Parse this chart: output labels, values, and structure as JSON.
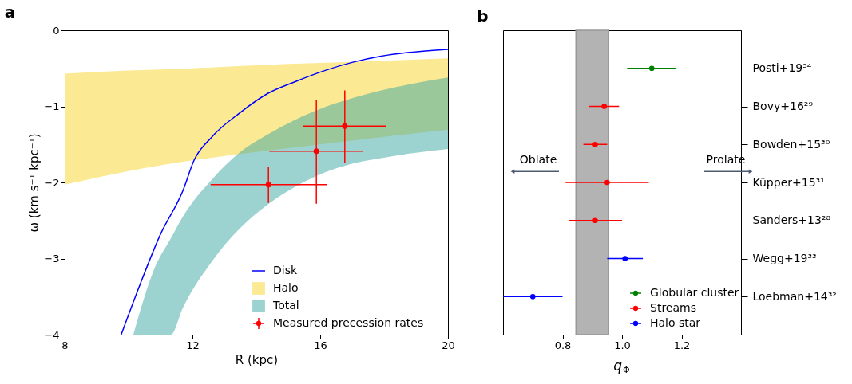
{
  "chart_data": [
    {
      "type": "line",
      "title": "a",
      "xlabel": "R (kpc)",
      "ylabel": "ω (km s⁻¹ kpc⁻¹)",
      "xlim": [
        8,
        20
      ],
      "ylim": [
        -4,
        0
      ],
      "xticks": [
        8,
        12,
        16,
        20
      ],
      "yticks": [
        -4,
        -3,
        -2,
        -1,
        0
      ],
      "legend": "bottom right",
      "series": [
        {
          "name": "Disk",
          "type": "line",
          "color": "#0000ff",
          "x": [
            9.77,
            10.37,
            10.99,
            11.7,
            12.05,
            12.59,
            13.47,
            14.36,
            15.25,
            16.14,
            17.02,
            17.91,
            18.8,
            20
          ],
          "values": [
            -4,
            -3.33,
            -2.69,
            -2.11,
            -1.71,
            -1.41,
            -1.09,
            -0.83,
            -0.67,
            -0.53,
            -0.42,
            -0.34,
            -0.29,
            -0.25
          ]
        },
        {
          "name": "Halo",
          "type": "area",
          "color": "#fce993",
          "x": [
            8,
            10,
            12,
            14,
            16,
            18,
            20
          ],
          "values": [
            null,
            null,
            null,
            null,
            null,
            null,
            null
          ],
          "lower": [
            -2.03,
            -1.85,
            -1.71,
            -1.6,
            -1.5,
            -1.4,
            -1.31
          ],
          "upper": [
            -0.57,
            -0.53,
            -0.5,
            -0.46,
            -0.43,
            -0.4,
            -0.37
          ]
        },
        {
          "name": "Total",
          "type": "area",
          "color": "#3aa7a3",
          "x": [
            10.15,
            10.81,
            11.33,
            11.7,
            12.59,
            13.47,
            14.36,
            15.25,
            16.14,
            17.02,
            17.91,
            18.8,
            20
          ],
          "lower": [
            -4,
            -4,
            -4,
            -3.65,
            -3.05,
            -2.61,
            -2.29,
            -2.05,
            -1.87,
            -1.75,
            -1.68,
            -1.62,
            -1.56
          ],
          "values": [
            null,
            null,
            null,
            null,
            null,
            null,
            null,
            null,
            null,
            null,
            null,
            null,
            null
          ],
          "upper": [
            -4,
            -3.13,
            -2.73,
            -2.45,
            -1.97,
            -1.61,
            -1.37,
            -1.17,
            -1.01,
            -0.89,
            -0.79,
            -0.71,
            -0.62
          ]
        },
        {
          "name": "Measured precession rates",
          "type": "scatter",
          "color": "#ff0000",
          "marker": "circle",
          "x": [
            14.38,
            15.88,
            16.77
          ],
          "values": [
            -2.03,
            -1.59,
            -1.26
          ],
          "errors": [
            [
              -2.27,
              -1.8
            ],
            [
              -2.28,
              -0.91
            ],
            [
              -1.74,
              -0.79
            ]
          ],
          "xerrors": [
            [
              12.57,
              16.2
            ],
            [
              14.41,
              17.35
            ],
            [
              15.47,
              18.07
            ]
          ]
        }
      ]
    },
    {
      "type": "scatter",
      "title": "b",
      "xlabel": "q$_{Φ}$",
      "orientation": "horizontal",
      "categories": [
        "Posti+19³⁴",
        "Bovy+16²⁹",
        "Bowden+15³⁰",
        "Küpper+15³¹",
        "Sanders+13²⁸",
        "Wegg+19³³",
        "Loebman+14³²"
      ],
      "xlim": [
        0.6,
        1.4
      ],
      "xticks": [
        0.8,
        {
          "value": 1.0,
          "label": "1.0"
        },
        1.2
      ],
      "legend": "bottom right",
      "marker": "circle",
      "bands": [
        {
          "axis": "x",
          "from": 0.845,
          "to": 0.955,
          "color": "#b3b3b3"
        }
      ],
      "annotations": [
        "Oblate",
        "Prolate"
      ],
      "series": [
        {
          "name": "Globular cluster",
          "color": "#008000",
          "values": [
            1.1,
            null,
            null,
            null,
            null,
            null,
            null
          ],
          "errors": [
            [
              1.017,
              1.183
            ],
            null,
            null,
            null,
            null,
            null,
            null
          ]
        },
        {
          "name": "Streams",
          "color": "#ff0000",
          "values": [
            null,
            0.94,
            0.91,
            0.95,
            0.91,
            null,
            null
          ],
          "errors": [
            null,
            [
              0.89,
              0.99
            ],
            [
              0.87,
              0.95
            ],
            [
              0.81,
              1.09
            ],
            [
              0.82,
              1.0
            ],
            null,
            null
          ]
        },
        {
          "name": "Halo star",
          "color": "#0000ff",
          "values": [
            null,
            null,
            null,
            null,
            null,
            1.01,
            0.7
          ],
          "errors": [
            null,
            null,
            null,
            null,
            null,
            [
              0.95,
              1.07
            ],
            [
              0.6,
              0.8
            ]
          ]
        }
      ]
    }
  ]
}
